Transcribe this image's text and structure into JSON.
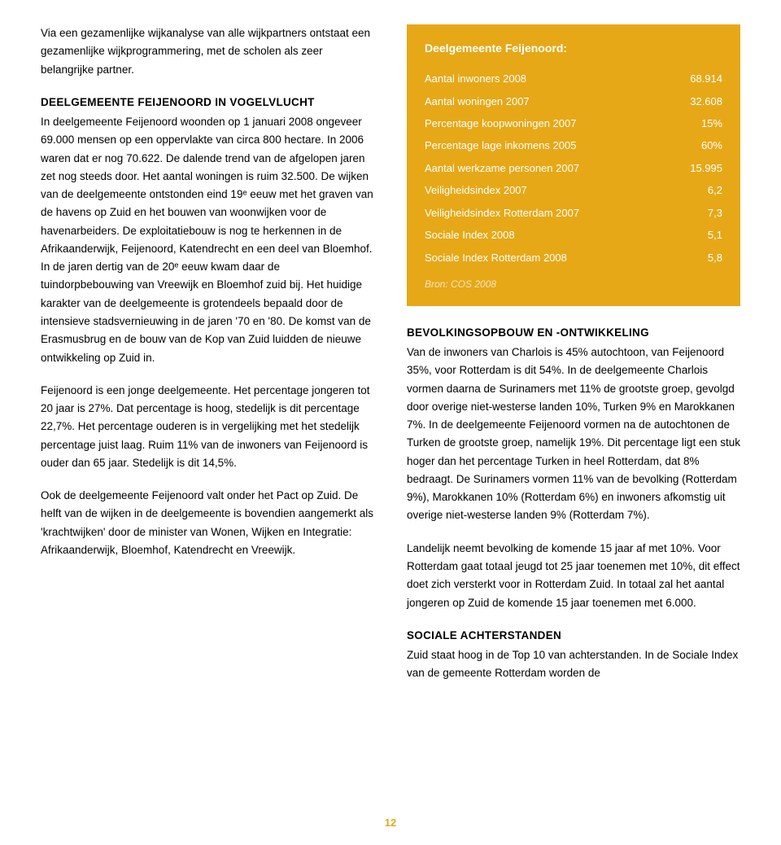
{
  "left": {
    "intro": "Via een gezamenlijke wijkanalyse van alle wijkpartners ontstaat een gezamenlijke wijkprogrammering, met de scholen als zeer belangrijke partner.",
    "h1": "DEELGEMEENTE FEIJENOORD IN VOGELVLUCHT",
    "p1": "In deelgemeente Feijenoord woonden op 1 januari 2008 ongeveer 69.000 mensen op een oppervlakte van circa 800 hectare. In 2006 waren dat er nog 70.622. De dalende trend van de afgelopen jaren zet nog steeds door. Het aantal woningen is ruim 32.500. De wijken van de deelgemeente ontstonden eind 19ᵉ eeuw met het graven van de havens op Zuid en het bouwen van woonwijken voor de havenarbeiders. De exploitatiebouw is nog te herkennen in de Afrikaanderwijk, Feijenoord, Katendrecht en een deel van Bloemhof. In de jaren dertig van de 20ᵉ eeuw kwam daar de tuindorpbebouwing van Vreewijk en Bloemhof zuid bij. Het huidige karakter van de deelgemeente is grotendeels bepaald door de intensieve stadsvernieuwing in de jaren '70 en '80. De komst van de Erasmusbrug en de bouw van de Kop van Zuid luidden de nieuwe ontwikkeling op Zuid in.",
    "p2": "Feijenoord is een jonge deelgemeente. Het percentage jongeren tot 20 jaar is 27%. Dat percentage is hoog, stedelijk is dit percentage 22,7%. Het percentage ouderen is in vergelijking met het stedelijk percentage juist laag. Ruim 11% van de inwoners van Feijenoord is ouder dan 65 jaar. Stedelijk is dit 14,5%.",
    "p3": "Ook de deelgemeente Feijenoord valt onder het Pact op Zuid. De helft van de wijken in de deelgemeente is bovendien aangemerkt als 'krachtwijken' door de minister van Wonen, Wijken en Integratie: Afrikaanderwijk, Bloemhof, Katendrecht en Vreewijk."
  },
  "box": {
    "title": "Deelgemeente Feijenoord:",
    "rows": [
      {
        "label": "Aantal inwoners 2008",
        "value": "68.914"
      },
      {
        "label": "Aantal woningen 2007",
        "value": "32.608"
      },
      {
        "label": "Percentage koopwoningen 2007",
        "value": "15%"
      },
      {
        "label": "Percentage lage inkomens 2005",
        "value": "60%"
      },
      {
        "label": "Aantal werkzame personen 2007",
        "value": "15.995"
      },
      {
        "label": "Veiligheidsindex 2007",
        "value": "6,2"
      },
      {
        "label": "Veiligheidsindex Rotterdam 2007",
        "value": "7,3"
      },
      {
        "label": "Sociale Index 2008",
        "value": "5,1"
      },
      {
        "label": "Sociale Index Rotterdam 2008",
        "value": "5,8"
      }
    ],
    "source": "Bron: COS 2008"
  },
  "right": {
    "h1": "BEVOLKINGSOPBOUW EN -ONTWIKKELING",
    "p1": "Van de inwoners van Charlois is 45% autochtoon, van Feijenoord 35%, voor Rotterdam is dit 54%. In de deelgemeente Charlois vormen daarna de Surinamers met 11% de grootste groep, gevolgd door overige niet-westerse landen 10%, Turken 9% en Marokkanen 7%. In de deelgemeente Feijenoord vormen na de autochtonen de Turken de grootste groep, namelijk 19%. Dit percentage ligt een stuk hoger dan het percentage Turken in heel Rotterdam, dat 8% bedraagt. De Surinamers vormen 11% van de bevolking (Rotterdam 9%), Marokkanen 10% (Rotterdam 6%) en inwoners afkomstig uit overige niet-westerse landen 9% (Rotterdam 7%).",
    "p2": "Landelijk neemt bevolking de komende 15 jaar af met 10%. Voor Rotterdam gaat totaal jeugd tot 25 jaar toenemen met 10%, dit effect doet zich versterkt voor in Rotterdam Zuid. In totaal zal het aantal jongeren op Zuid de komende 15 jaar toenemen met 6.000.",
    "h2": "SOCIALE ACHTERSTANDEN",
    "p3": "Zuid staat hoog in de Top 10 van achterstanden. In de Sociale Index van de gemeente Rotterdam worden de"
  },
  "page_number": "12",
  "colors": {
    "accent": "#e6a817",
    "box_text": "#ffffff",
    "body_text": "#000000",
    "box_source": "#f5e4c0"
  }
}
